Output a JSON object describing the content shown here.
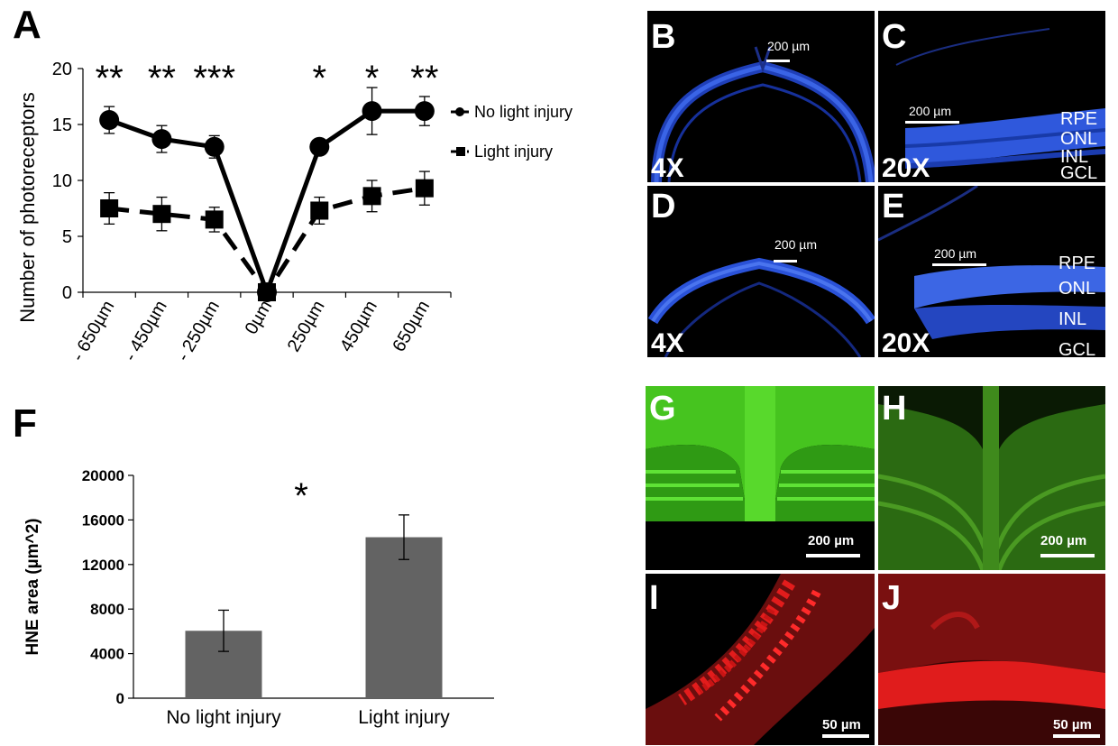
{
  "panels": {
    "a": "A",
    "b": "B",
    "c": "C",
    "d": "D",
    "e": "E",
    "f": "F",
    "g": "G",
    "h": "H",
    "i": "I",
    "j": "J"
  },
  "micrographs": {
    "b": {
      "mag": "4X",
      "scale": "200 µm"
    },
    "c": {
      "mag": "20X",
      "scale": "200 µm",
      "layers": [
        "RPE",
        "ONL",
        "INL",
        "GCL"
      ]
    },
    "d": {
      "mag": "4X",
      "scale": "200 µm"
    },
    "e": {
      "mag": "20X",
      "scale": "200 µm",
      "layers": [
        "RPE",
        "ONL",
        "INL",
        "GCL"
      ]
    },
    "g": {
      "scale": "200 µm"
    },
    "h": {
      "scale": "200 µm"
    },
    "i": {
      "scale": "50 µm"
    },
    "j": {
      "scale": "50 µm"
    }
  },
  "colors": {
    "dapi_blue": "#2a4fd6",
    "gfp_green": "#3bbf1a",
    "red_stain": "#d41a1a",
    "bar_gray": "#636363"
  },
  "chart_data": [
    {
      "panel": "A",
      "type": "line",
      "categories": [
        "- 650µm",
        "- 450µm",
        "- 250µm",
        "0µm",
        "250µm",
        "450µm",
        "650µm"
      ],
      "ylabel": "Number of photoreceptors",
      "xlabel": "",
      "ylim": [
        0,
        20
      ],
      "yticks": [
        0,
        5,
        10,
        15,
        20
      ],
      "significance": [
        "**",
        "**",
        "***",
        "",
        "*",
        "*",
        "**"
      ],
      "series": [
        {
          "name": "No light injury",
          "marker": "circle",
          "line": "solid",
          "values": [
            15.4,
            13.7,
            13.0,
            0,
            13.0,
            16.2,
            16.2
          ],
          "errors": [
            1.2,
            1.2,
            1.0,
            0,
            0,
            2.1,
            1.3
          ]
        },
        {
          "name": "Light injury",
          "marker": "square",
          "line": "dashed",
          "values": [
            7.5,
            7.0,
            6.5,
            0,
            7.3,
            8.6,
            9.3
          ],
          "errors": [
            1.4,
            1.5,
            1.1,
            0,
            1.2,
            1.4,
            1.5
          ]
        }
      ]
    },
    {
      "panel": "F",
      "type": "bar",
      "categories": [
        "No light injury",
        "Light injury"
      ],
      "values": [
        6050,
        14450
      ],
      "errors": [
        1850,
        2000
      ],
      "ylabel": "HNE area (µm^2)",
      "xlabel": "",
      "ylim": [
        0,
        20000
      ],
      "yticks": [
        0,
        4000,
        8000,
        12000,
        16000,
        20000
      ],
      "significance": "*"
    }
  ]
}
